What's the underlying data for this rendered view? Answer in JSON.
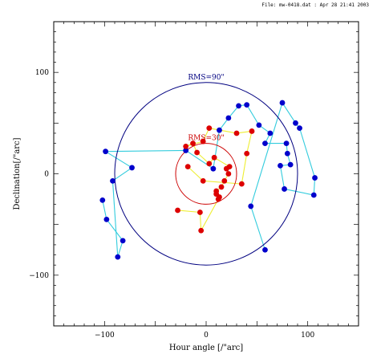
{
  "header": {
    "file_info": "File: mw-0418.dat : Apr 28 21:41 2003"
  },
  "chart_data": {
    "type": "scatter",
    "title": "",
    "xlabel": "Hour angle [/\"arc]",
    "ylabel": "Declination[/\"arc]",
    "xlim": [
      -150,
      150
    ],
    "ylim": [
      -150,
      150
    ],
    "xticks": [
      -100,
      0,
      100
    ],
    "yticks": [
      -100,
      0,
      100
    ],
    "tick_labels_x": [
      "−100",
      "0",
      "100"
    ],
    "tick_labels_y": [
      "−100",
      "0",
      "100"
    ],
    "grid": false,
    "colors": {
      "blue_points": "#0000cc",
      "red_points": "#dd0000",
      "cyan_lines": "#33ccdd",
      "yellow_lines": "#eeee33",
      "frame": "#000000"
    },
    "circles": [
      {
        "label": "RMS=90\"",
        "radius": 90,
        "color": "#000080"
      },
      {
        "label": "RMS=30\"",
        "radius": 30,
        "color": "#cc0000"
      }
    ],
    "series": [
      {
        "name": "",
        "color": "#0000cc",
        "x": [
          -102,
          -99,
          -98,
          -92,
          -87,
          -82,
          -73,
          -20,
          7,
          13,
          22,
          32,
          40,
          52,
          58,
          63,
          75,
          79,
          80,
          83,
          88,
          92,
          107,
          106,
          77,
          73,
          58,
          44
        ],
        "y": [
          -26,
          22,
          -45,
          -7,
          -82,
          -66,
          6,
          23,
          5,
          43,
          55,
          67,
          68,
          48,
          30,
          40,
          70,
          30,
          20,
          9,
          50,
          45,
          -4,
          -21,
          -15,
          8,
          -75,
          -32
        ],
        "marker": "circle"
      },
      {
        "name": "",
        "color": "#dd0000",
        "x": [
          -28,
          -20,
          -18,
          -13,
          -9,
          -6,
          -5,
          -3,
          -3,
          3,
          3,
          8,
          10,
          10,
          12,
          13,
          15,
          18,
          20,
          22,
          23,
          30,
          35,
          40,
          45
        ],
        "y": [
          -36,
          27,
          7,
          30,
          21,
          -38,
          -56,
          32,
          -7,
          45,
          10,
          16,
          -20,
          -17,
          -25,
          -23,
          -13,
          -7,
          5,
          0,
          7,
          40,
          -10,
          20,
          42
        ],
        "marker": "circle"
      }
    ]
  }
}
